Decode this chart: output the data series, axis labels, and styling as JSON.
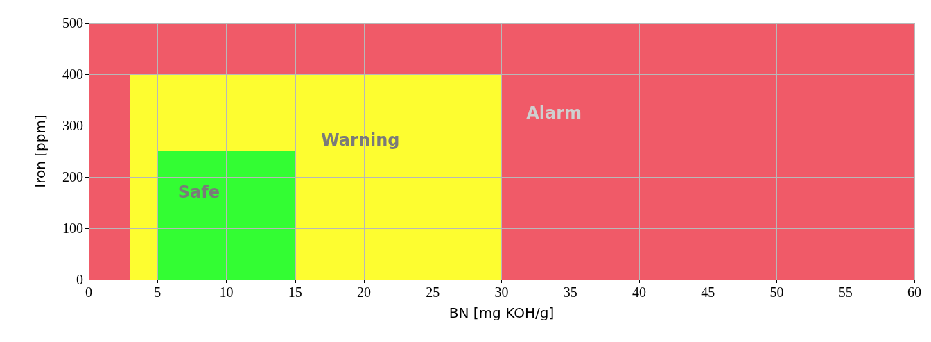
{
  "chart_data": {
    "type": "area",
    "xlabel": "BN [mg KOH/g]",
    "ylabel": "Iron [ppm]",
    "series": [
      {
        "name": "Warning",
        "x": [
          3,
          30
        ],
        "values": [
          400,
          400
        ],
        "color": "#fdfd30"
      },
      {
        "name": "Safe",
        "x": [
          5,
          15
        ],
        "values": [
          250,
          250
        ],
        "color": "#33fd33"
      }
    ],
    "bands": [
      {
        "axis": "x",
        "from": 0,
        "to": 60,
        "label": "Alarm",
        "color": "#f05a68"
      }
    ],
    "xlim": [
      0,
      60
    ],
    "xticks": [
      0,
      5,
      10,
      15,
      20,
      25,
      30,
      35,
      40,
      45,
      50,
      55,
      60
    ],
    "ylim": [
      0,
      500
    ],
    "yticks": [
      0,
      100,
      200,
      300,
      400,
      500
    ],
    "grid": true
  }
}
